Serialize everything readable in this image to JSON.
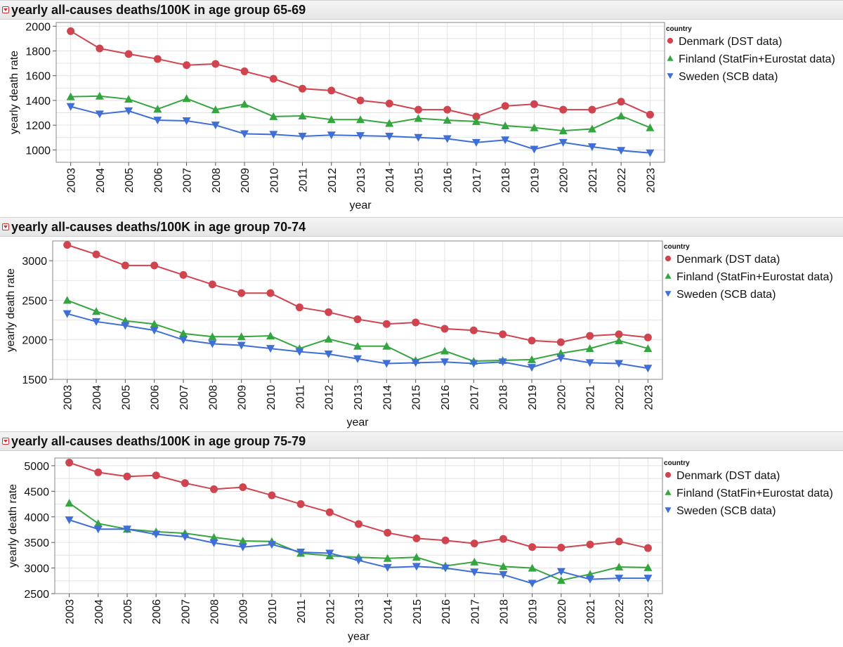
{
  "colors": {
    "denmark": "#d0444f",
    "finland": "#35a53f",
    "sweden": "#3f6fd6"
  },
  "chart_data": [
    {
      "type": "line",
      "title": "yearly all-causes deaths/100K in age group 65-69",
      "xlabel": "year",
      "ylabel": "yearly death rate",
      "ylim": [
        900,
        2030
      ],
      "yticks": [
        1000,
        1200,
        1400,
        1600,
        1800,
        2000
      ],
      "categories": [
        "2003",
        "2004",
        "2005",
        "2006",
        "2007",
        "2008",
        "2009",
        "2010",
        "2011",
        "2012",
        "2013",
        "2014",
        "2015",
        "2016",
        "2017",
        "2018",
        "2019",
        "2020",
        "2021",
        "2022",
        "2023"
      ],
      "legend_title": "country",
      "series": [
        {
          "name": "Denmark (DST data)",
          "marker": "circle",
          "color_key": "denmark",
          "values": [
            1960,
            1820,
            1775,
            1735,
            1685,
            1695,
            1635,
            1575,
            1495,
            1480,
            1400,
            1375,
            1325,
            1325,
            1270,
            1355,
            1370,
            1325,
            1325,
            1390,
            1285
          ]
        },
        {
          "name": "Finland (StatFin+Eurostat data)",
          "marker": "triangle-up",
          "color_key": "finland",
          "values": [
            1430,
            1435,
            1410,
            1330,
            1415,
            1325,
            1370,
            1270,
            1275,
            1245,
            1245,
            1215,
            1255,
            1240,
            1230,
            1195,
            1180,
            1155,
            1170,
            1275,
            1180
          ]
        },
        {
          "name": "Sweden (SCB data)",
          "marker": "triangle-down",
          "color_key": "sweden",
          "values": [
            1350,
            1290,
            1315,
            1240,
            1235,
            1200,
            1130,
            1125,
            1110,
            1120,
            1115,
            1110,
            1100,
            1090,
            1060,
            1080,
            1005,
            1060,
            1025,
            995,
            975
          ]
        }
      ]
    },
    {
      "type": "line",
      "title": "yearly all-causes deaths/100K in age group 70-74",
      "xlabel": "year",
      "ylabel": "yearly death rate",
      "ylim": [
        1500,
        3250
      ],
      "yticks": [
        1500,
        2000,
        2500,
        3000
      ],
      "categories": [
        "2003",
        "2004",
        "2005",
        "2006",
        "2007",
        "2008",
        "2009",
        "2010",
        "2011",
        "2012",
        "2013",
        "2014",
        "2015",
        "2016",
        "2017",
        "2018",
        "2019",
        "2020",
        "2021",
        "2022",
        "2023"
      ],
      "legend_title": "country",
      "series": [
        {
          "name": "Denmark (DST data)",
          "marker": "circle",
          "color_key": "denmark",
          "values": [
            3200,
            3080,
            2940,
            2940,
            2820,
            2700,
            2590,
            2590,
            2410,
            2350,
            2260,
            2200,
            2220,
            2140,
            2120,
            2070,
            1990,
            1970,
            2050,
            2070,
            2030
          ]
        },
        {
          "name": "Finland (StatFin+Eurostat data)",
          "marker": "triangle-up",
          "color_key": "finland",
          "values": [
            2500,
            2360,
            2240,
            2200,
            2080,
            2040,
            2040,
            2050,
            1890,
            2010,
            1920,
            1920,
            1740,
            1860,
            1730,
            1740,
            1750,
            1830,
            1890,
            1990,
            1890
          ]
        },
        {
          "name": "Sweden (SCB data)",
          "marker": "triangle-down",
          "color_key": "sweden",
          "values": [
            2330,
            2230,
            2180,
            2120,
            2000,
            1950,
            1930,
            1890,
            1850,
            1820,
            1760,
            1700,
            1710,
            1720,
            1700,
            1720,
            1650,
            1770,
            1710,
            1700,
            1640
          ]
        }
      ]
    },
    {
      "type": "line",
      "title": "yearly all-causes deaths/100K in age group 75-79",
      "xlabel": "year",
      "ylabel": "yearly death rate",
      "ylim": [
        2500,
        5150
      ],
      "yticks": [
        2500,
        3000,
        3500,
        4000,
        4500,
        5000
      ],
      "categories": [
        "2003",
        "2004",
        "2005",
        "2006",
        "2007",
        "2008",
        "2009",
        "2010",
        "2011",
        "2012",
        "2013",
        "2014",
        "2015",
        "2016",
        "2017",
        "2018",
        "2019",
        "2020",
        "2021",
        "2022",
        "2023"
      ],
      "legend_title": "country",
      "series": [
        {
          "name": "Denmark (DST data)",
          "marker": "circle",
          "color_key": "denmark",
          "values": [
            5060,
            4870,
            4790,
            4810,
            4660,
            4540,
            4580,
            4420,
            4250,
            4090,
            3860,
            3690,
            3580,
            3540,
            3480,
            3570,
            3410,
            3400,
            3460,
            3520,
            3390
          ]
        },
        {
          "name": "Finland (StatFin+Eurostat data)",
          "marker": "triangle-up",
          "color_key": "finland",
          "values": [
            4270,
            3870,
            3760,
            3710,
            3680,
            3600,
            3530,
            3520,
            3290,
            3240,
            3210,
            3190,
            3210,
            3040,
            3120,
            3030,
            3000,
            2760,
            2880,
            3020,
            3010
          ]
        },
        {
          "name": "Sweden (SCB data)",
          "marker": "triangle-down",
          "color_key": "sweden",
          "values": [
            3940,
            3760,
            3760,
            3660,
            3610,
            3490,
            3410,
            3460,
            3310,
            3290,
            3150,
            3010,
            3030,
            3000,
            2920,
            2870,
            2700,
            2930,
            2780,
            2800,
            2800
          ]
        }
      ]
    }
  ]
}
